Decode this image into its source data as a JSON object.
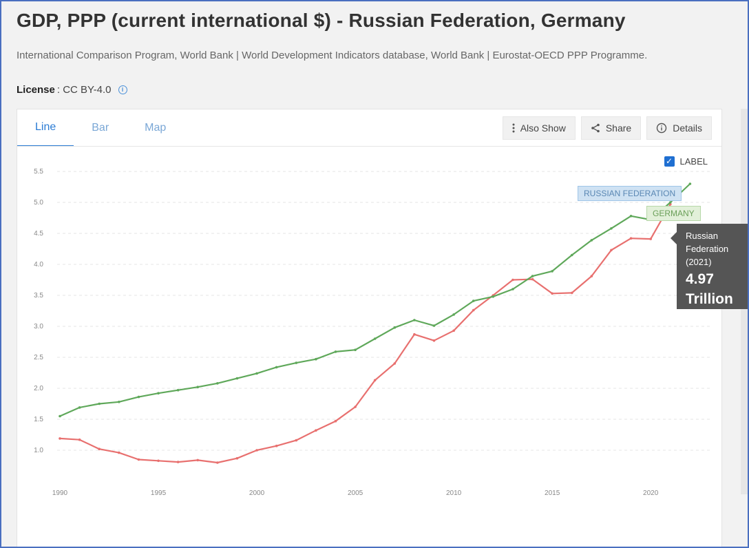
{
  "page": {
    "title": "GDP, PPP (current international $) - Russian Federation, Germany",
    "sources": "International Comparison Program, World Bank | World Development Indicators database, World Bank | Eurostat-OECD PPP Programme.",
    "license_label": "License",
    "license_value": ": CC BY-4.0",
    "license_icon": "info-icon"
  },
  "tabs": [
    {
      "label": "Line",
      "active": true
    },
    {
      "label": "Bar",
      "active": false
    },
    {
      "label": "Map",
      "active": false
    }
  ],
  "toolbar": {
    "also_show": {
      "label": "Also Show",
      "icon": "kebab-vertical-icon"
    },
    "share": {
      "label": "Share",
      "icon": "share-icon"
    },
    "details": {
      "label": "Details",
      "icon": "info-icon"
    }
  },
  "label_toggle": {
    "label": "LABEL",
    "checked": true
  },
  "tooltip": {
    "name": "Russian Federation (2021)",
    "value": "4.97 Trillion"
  },
  "colors": {
    "russia": "#e8706f",
    "germany": "#5fa85a",
    "grid": "#e6e6e6"
  },
  "chart_data": {
    "type": "line",
    "title": "GDP, PPP (current international $) - Russian Federation, Germany",
    "xlabel": "",
    "ylabel": "",
    "x": [
      1990,
      1991,
      1992,
      1993,
      1994,
      1995,
      1996,
      1997,
      1998,
      1999,
      2000,
      2001,
      2002,
      2003,
      2004,
      2005,
      2006,
      2007,
      2008,
      2009,
      2010,
      2011,
      2012,
      2013,
      2014,
      2015,
      2016,
      2017,
      2018,
      2019,
      2020,
      2021,
      2022
    ],
    "xlim": [
      1990,
      2023
    ],
    "xticks": [
      1990,
      1995,
      2000,
      2005,
      2010,
      2015,
      2020
    ],
    "ylim": [
      0.5,
      5.5
    ],
    "yticks": [
      1.0,
      1.5,
      2.0,
      2.5,
      3.0,
      3.5,
      4.0,
      4.5,
      5.0,
      5.5
    ],
    "ytick_labels": [
      "1.0",
      "1.5",
      "2.0",
      "2.5",
      "3.0",
      "3.5",
      "4.0",
      "4.5",
      "5.0",
      "5.5"
    ],
    "grid": true,
    "series": [
      {
        "name": "Russian Federation",
        "tag": "RUSSIAN FEDERATION",
        "values": [
          1.19,
          1.17,
          1.02,
          0.96,
          0.85,
          0.83,
          0.81,
          0.84,
          0.8,
          0.87,
          1.0,
          1.07,
          1.16,
          1.32,
          1.47,
          1.7,
          2.13,
          2.4,
          2.87,
          2.77,
          2.93,
          3.26,
          3.5,
          3.75,
          3.76,
          3.53,
          3.54,
          3.81,
          4.23,
          4.42,
          4.41,
          4.97,
          null
        ]
      },
      {
        "name": "Germany",
        "tag": "GERMANY",
        "values": [
          1.55,
          1.69,
          1.75,
          1.78,
          1.86,
          1.92,
          1.97,
          2.02,
          2.08,
          2.16,
          2.24,
          2.34,
          2.41,
          2.47,
          2.59,
          2.62,
          2.8,
          2.98,
          3.1,
          3.01,
          3.19,
          3.41,
          3.48,
          3.6,
          3.81,
          3.89,
          4.15,
          4.39,
          4.58,
          4.78,
          4.72,
          5.0,
          5.3
        ]
      }
    ]
  }
}
